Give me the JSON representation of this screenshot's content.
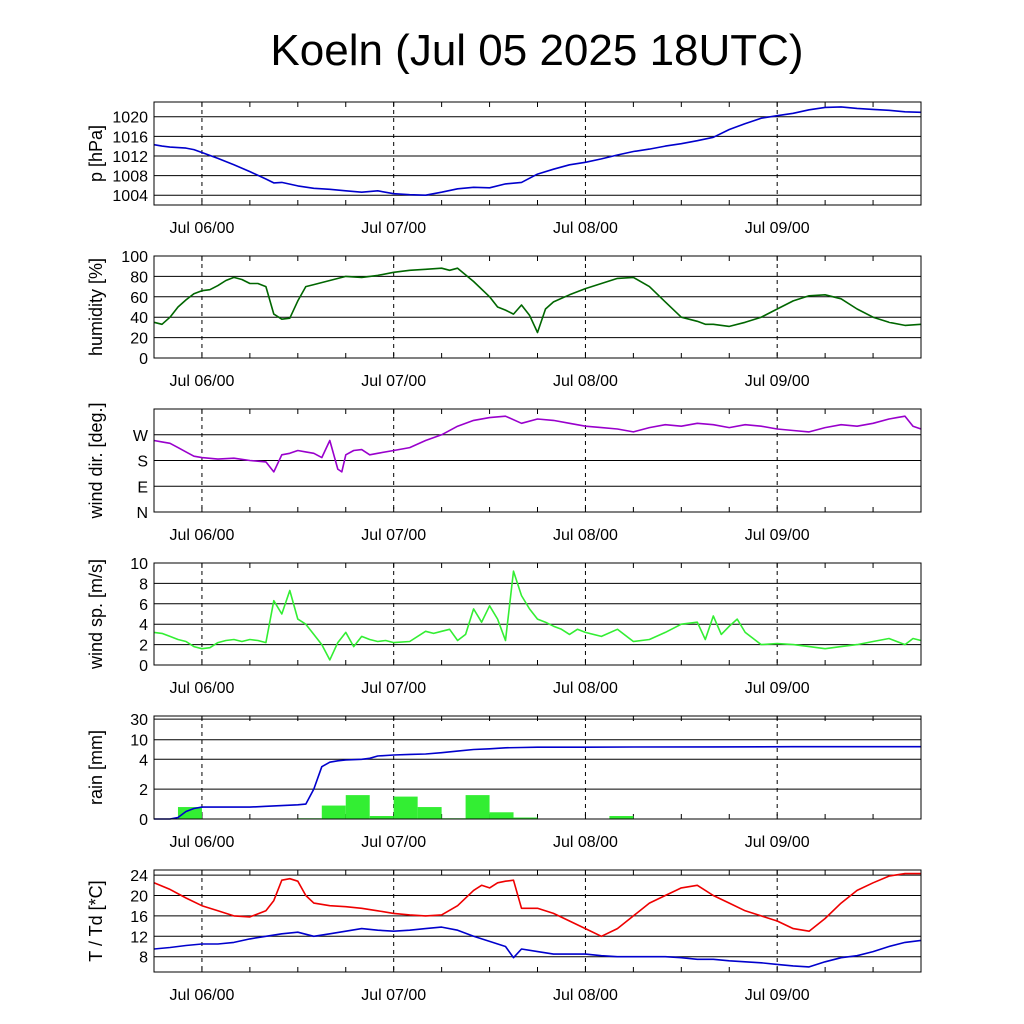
{
  "title": "Koeln (Jul 05 2025 18UTC)",
  "colors": {
    "pressure": "#0000cc",
    "humidity": "#006600",
    "wind_dir": "#9900cc",
    "wind_speed": "#33ee33",
    "rain_bar": "#33ee33",
    "rain_total": "#0000cc",
    "temperature": "#ee0000",
    "dewpoint": "#0000cc"
  },
  "chart_data": [
    {
      "type": "line",
      "ylabel": "p [hPa]",
      "x_tick_labels": [
        "Jul 06/00",
        "Jul 07/00",
        "Jul 08/00",
        "Jul 09/00"
      ],
      "x_ticks_hours": [
        6,
        30,
        54,
        78
      ],
      "xlim_hours": [
        0,
        96
      ],
      "ylim": [
        1002,
        1023
      ],
      "y_ticks": [
        1004,
        1008,
        1012,
        1016,
        1020
      ],
      "y_tick_labels": [
        "1004",
        "1008",
        "1012",
        "1016",
        "1020"
      ],
      "grid": "horizontal",
      "series": [
        {
          "color_key": "pressure",
          "x": [
            0,
            1,
            2,
            3,
            4,
            5,
            6,
            8,
            10,
            12,
            14,
            15,
            16,
            18,
            20,
            22,
            24,
            26,
            28,
            30,
            32,
            34,
            36,
            38,
            40,
            42,
            44,
            46,
            48,
            50,
            52,
            54,
            56,
            58,
            60,
            62,
            64,
            66,
            68,
            70,
            72,
            74,
            76,
            78,
            80,
            82,
            84,
            86,
            88,
            90,
            92,
            94,
            96
          ],
          "y": [
            1014.3,
            1014.0,
            1013.8,
            1013.7,
            1013.6,
            1013.3,
            1012.7,
            1011.5,
            1010.2,
            1008.8,
            1007.3,
            1006.5,
            1006.6,
            1005.9,
            1005.4,
            1005.2,
            1004.9,
            1004.6,
            1004.9,
            1004.3,
            1004.1,
            1004.0,
            1004.6,
            1005.3,
            1005.6,
            1005.5,
            1006.3,
            1006.6,
            1008.3,
            1009.3,
            1010.2,
            1010.7,
            1011.4,
            1012.2,
            1012.9,
            1013.4,
            1014.0,
            1014.5,
            1015.1,
            1015.8,
            1017.4,
            1018.6,
            1019.7,
            1020.2,
            1020.7,
            1021.4,
            1021.9,
            1022.0,
            1021.7,
            1021.5,
            1021.3,
            1021.0,
            1020.9
          ]
        }
      ]
    },
    {
      "type": "line",
      "ylabel": "humidity [%]",
      "x_tick_labels": [
        "Jul 06/00",
        "Jul 07/00",
        "Jul 08/00",
        "Jul 09/00"
      ],
      "x_ticks_hours": [
        6,
        30,
        54,
        78
      ],
      "xlim_hours": [
        0,
        96
      ],
      "ylim": [
        0,
        100
      ],
      "y_ticks": [
        0,
        20,
        40,
        60,
        80,
        100
      ],
      "y_tick_labels": [
        "0",
        "20",
        "40",
        "60",
        "80",
        "100"
      ],
      "grid": "horizontal",
      "series": [
        {
          "color_key": "humidity",
          "x": [
            0,
            1,
            2,
            3,
            4,
            5,
            6,
            7,
            8,
            9,
            10,
            11,
            12,
            13,
            14,
            15,
            16,
            17,
            18,
            19,
            20,
            22,
            24,
            26,
            28,
            30,
            32,
            34,
            36,
            37,
            38,
            40,
            42,
            43,
            44,
            45,
            46,
            47,
            48,
            49,
            50,
            52,
            54,
            56,
            58,
            60,
            62,
            64,
            66,
            68,
            69,
            70,
            72,
            74,
            76,
            78,
            80,
            82,
            84,
            86,
            88,
            90,
            92,
            94,
            96
          ],
          "y": [
            35,
            33,
            40,
            50,
            57,
            63,
            66,
            67,
            71,
            76,
            79,
            77,
            73,
            73,
            70,
            43,
            38,
            39,
            56,
            70,
            72,
            76,
            80,
            79,
            81,
            84,
            86,
            87,
            88,
            86,
            88,
            75,
            60,
            50,
            47,
            43,
            52,
            42,
            25,
            48,
            55,
            62,
            68,
            73,
            78,
            79,
            70,
            55,
            40,
            36,
            33,
            33,
            31,
            35,
            40,
            48,
            56,
            61,
            62,
            58,
            48,
            40,
            35,
            32,
            33
          ]
        }
      ]
    },
    {
      "type": "line",
      "ylabel": "wind dir. [deg.]",
      "x_tick_labels": [
        "Jul 06/00",
        "Jul 07/00",
        "Jul 08/00",
        "Jul 09/00"
      ],
      "x_ticks_hours": [
        6,
        30,
        54,
        78
      ],
      "xlim_hours": [
        0,
        96
      ],
      "ylim": [
        0,
        360
      ],
      "y_ticks": [
        0,
        90,
        180,
        270
      ],
      "y_tick_labels": [
        "N",
        "E",
        "S",
        "W"
      ],
      "grid": "horizontal",
      "series": [
        {
          "color_key": "wind_dir",
          "x": [
            0,
            1,
            2,
            3,
            4,
            5,
            6,
            8,
            10,
            12,
            14,
            15,
            16,
            17,
            18,
            19,
            20,
            21,
            22,
            23,
            23.5,
            24,
            25,
            26,
            27,
            28,
            30,
            32,
            34,
            36,
            38,
            40,
            42,
            44,
            46,
            48,
            50,
            52,
            54,
            56,
            58,
            60,
            62,
            64,
            66,
            68,
            70,
            72,
            74,
            76,
            78,
            80,
            82,
            84,
            86,
            88,
            90,
            92,
            93,
            94,
            95,
            96
          ],
          "y": [
            250,
            245,
            240,
            225,
            210,
            195,
            190,
            185,
            188,
            180,
            175,
            140,
            200,
            205,
            215,
            210,
            205,
            190,
            250,
            150,
            140,
            200,
            215,
            218,
            200,
            205,
            215,
            225,
            250,
            270,
            300,
            320,
            330,
            335,
            310,
            325,
            320,
            310,
            300,
            295,
            290,
            280,
            295,
            305,
            300,
            310,
            305,
            295,
            305,
            300,
            290,
            285,
            280,
            295,
            305,
            300,
            310,
            325,
            330,
            335,
            300,
            290
          ]
        }
      ]
    },
    {
      "type": "line",
      "ylabel": "wind sp. [m/s]",
      "x_tick_labels": [
        "Jul 06/00",
        "Jul 07/00",
        "Jul 08/00",
        "Jul 09/00"
      ],
      "x_ticks_hours": [
        6,
        30,
        54,
        78
      ],
      "xlim_hours": [
        0,
        96
      ],
      "ylim": [
        0,
        10
      ],
      "y_ticks": [
        0,
        2,
        4,
        6,
        8,
        10
      ],
      "y_tick_labels": [
        "0",
        "2",
        "4",
        "6",
        "8",
        "10"
      ],
      "grid": "horizontal",
      "series": [
        {
          "color_key": "wind_speed",
          "x": [
            0,
            1,
            2,
            3,
            4,
            5,
            6,
            7,
            8,
            9,
            10,
            11,
            12,
            13,
            14,
            15,
            16,
            17,
            18,
            19,
            20,
            21,
            22,
            23,
            24,
            25,
            26,
            27,
            28,
            29,
            30,
            32,
            34,
            35,
            36,
            37,
            38,
            39,
            40,
            41,
            42,
            43,
            44,
            45,
            46,
            47,
            48,
            49,
            50,
            51,
            52,
            53,
            54,
            56,
            58,
            60,
            62,
            64,
            66,
            68,
            69,
            70,
            71,
            72,
            73,
            74,
            76,
            78,
            80,
            82,
            84,
            86,
            88,
            90,
            92,
            94,
            95,
            96
          ],
          "y": [
            3.2,
            3.1,
            2.8,
            2.5,
            2.3,
            1.8,
            1.6,
            1.7,
            2.2,
            2.4,
            2.5,
            2.3,
            2.5,
            2.4,
            2.2,
            6.3,
            5.0,
            7.3,
            4.5,
            4.0,
            3.0,
            2.0,
            0.5,
            2.2,
            3.2,
            1.8,
            2.8,
            2.5,
            2.3,
            2.4,
            2.2,
            2.3,
            3.3,
            3.1,
            3.3,
            3.5,
            2.4,
            3.0,
            5.5,
            4.2,
            5.8,
            4.5,
            2.4,
            9.2,
            6.8,
            5.5,
            4.5,
            4.2,
            3.8,
            3.5,
            3.0,
            3.5,
            3.2,
            2.8,
            3.5,
            2.3,
            2.5,
            3.2,
            4.0,
            4.2,
            2.5,
            4.8,
            3.0,
            3.8,
            4.5,
            3.2,
            2.0,
            2.1,
            2.0,
            1.8,
            1.6,
            1.8,
            2.0,
            2.3,
            2.6,
            2.0,
            2.6,
            2.4
          ]
        }
      ]
    },
    {
      "type": "bar",
      "ylabel": "rain [mm]",
      "x_tick_labels": [
        "Jul 06/00",
        "Jul 07/00",
        "Jul 08/00",
        "Jul 09/00"
      ],
      "x_ticks_hours": [
        6,
        30,
        54,
        78
      ],
      "xlim_hours": [
        0,
        96
      ],
      "y_tick_labels": [
        "0",
        "2",
        "4",
        "10",
        "30"
      ],
      "y_ticks": [
        0,
        2,
        4,
        10,
        30
      ],
      "y_scale": "custom-nonlinear",
      "grid": "horizontal",
      "bars": {
        "color_key": "rain_bar",
        "bar_width_hours": 3,
        "x_start_hours": [
          3,
          12,
          18,
          21,
          24,
          27,
          30,
          33,
          36,
          39,
          42,
          45,
          54,
          57
        ],
        "values": [
          0.8,
          0.02,
          0.05,
          0.9,
          1.6,
          0.2,
          1.5,
          0.8,
          0.05,
          1.6,
          0.45,
          0.1,
          0.02,
          0.2
        ]
      },
      "series": [
        {
          "name": "",
          "color_key": "rain_total",
          "x": [
            0,
            2,
            3,
            4,
            5,
            6,
            8,
            10,
            12,
            14,
            16,
            18,
            19,
            20,
            21,
            22,
            23,
            24,
            26,
            27,
            28,
            30,
            32,
            34,
            36,
            38,
            40,
            42,
            44,
            46,
            48,
            54,
            60,
            70,
            80,
            96
          ],
          "y": [
            0,
            0,
            0.1,
            0.5,
            0.7,
            0.8,
            0.8,
            0.8,
            0.8,
            0.85,
            0.9,
            0.95,
            1.0,
            2.0,
            3.5,
            3.8,
            3.9,
            3.95,
            4.0,
            4.3,
            5.0,
            5.3,
            5.5,
            5.6,
            6.0,
            6.5,
            7.0,
            7.2,
            7.5,
            7.6,
            7.7,
            7.7,
            7.75,
            7.8,
            7.85,
            7.85
          ]
        }
      ]
    },
    {
      "type": "line",
      "ylabel": "T / Td [*C]",
      "x_tick_labels": [
        "Jul 06/00",
        "Jul 07/00",
        "Jul 08/00",
        "Jul 09/00"
      ],
      "x_ticks_hours": [
        6,
        30,
        54,
        78
      ],
      "xlim_hours": [
        0,
        96
      ],
      "ylim": [
        5,
        25
      ],
      "y_ticks": [
        8,
        12,
        16,
        20,
        24
      ],
      "y_tick_labels": [
        "8",
        "12",
        "16",
        "20",
        "24"
      ],
      "grid": "horizontal",
      "series": [
        {
          "name": "",
          "color_key": "temperature",
          "x": [
            0,
            2,
            4,
            6,
            8,
            10,
            12,
            14,
            15,
            16,
            17,
            18,
            19,
            20,
            22,
            24,
            26,
            28,
            30,
            32,
            34,
            36,
            38,
            40,
            41,
            42,
            43,
            44,
            45,
            46,
            48,
            50,
            52,
            54,
            56,
            58,
            60,
            62,
            64,
            66,
            68,
            70,
            72,
            74,
            76,
            78,
            80,
            82,
            84,
            86,
            88,
            90,
            92,
            94,
            96
          ],
          "y": [
            22.5,
            21.2,
            19.5,
            18.0,
            17.0,
            16.0,
            15.8,
            17.0,
            19.0,
            23.0,
            23.3,
            22.8,
            20.0,
            18.5,
            18.0,
            17.8,
            17.5,
            17.0,
            16.5,
            16.2,
            16.0,
            16.2,
            18.0,
            21.0,
            22.0,
            21.5,
            22.5,
            22.8,
            23.0,
            17.5,
            17.5,
            16.5,
            15.0,
            13.5,
            12.0,
            13.5,
            16.0,
            18.5,
            20.0,
            21.5,
            22.0,
            20.0,
            18.5,
            17.0,
            16.0,
            15.0,
            13.5,
            13.0,
            15.5,
            18.5,
            21.0,
            22.5,
            23.8,
            24.3,
            24.3
          ]
        },
        {
          "name": "",
          "color_key": "dewpoint",
          "x": [
            0,
            2,
            4,
            6,
            8,
            10,
            12,
            14,
            16,
            18,
            20,
            22,
            24,
            26,
            28,
            30,
            32,
            34,
            36,
            38,
            40,
            42,
            44,
            45,
            46,
            48,
            50,
            52,
            54,
            56,
            58,
            60,
            62,
            64,
            66,
            68,
            70,
            72,
            74,
            76,
            78,
            80,
            82,
            84,
            86,
            88,
            90,
            92,
            94,
            96
          ],
          "y": [
            9.5,
            9.8,
            10.2,
            10.5,
            10.5,
            10.8,
            11.5,
            12.0,
            12.5,
            12.8,
            12.0,
            12.5,
            13.0,
            13.5,
            13.2,
            13.0,
            13.2,
            13.5,
            13.8,
            13.2,
            12.0,
            11.0,
            10.0,
            7.8,
            9.5,
            9.0,
            8.5,
            8.5,
            8.5,
            8.2,
            8.0,
            8.0,
            8.0,
            8.0,
            7.8,
            7.5,
            7.5,
            7.2,
            7.0,
            6.8,
            6.5,
            6.2,
            6.0,
            7.0,
            7.8,
            8.2,
            9.0,
            10.0,
            10.8,
            11.2
          ]
        }
      ]
    }
  ]
}
